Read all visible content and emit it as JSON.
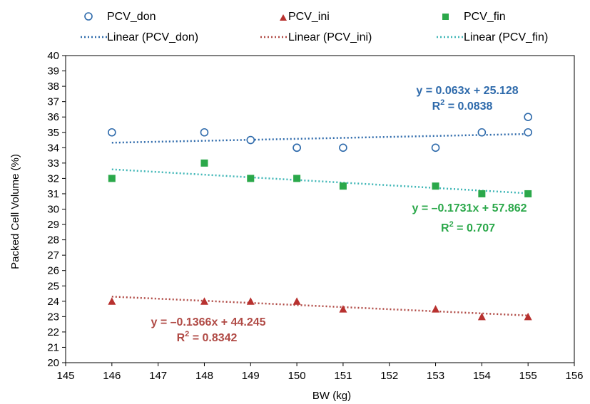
{
  "chart_data": {
    "type": "scatter",
    "title": "",
    "xlabel": "BW (kg)",
    "ylabel": "Packed Cell Volume (%)",
    "xlim": [
      145,
      156
    ],
    "ylim": [
      20,
      40
    ],
    "x_ticks": [
      "145",
      "146",
      "147",
      "148",
      "149",
      "150",
      "151",
      "152",
      "153",
      "154",
      "155",
      "156"
    ],
    "y_ticks": [
      "20",
      "21",
      "22",
      "23",
      "24",
      "25",
      "26",
      "27",
      "28",
      "29",
      "30",
      "31",
      "32",
      "33",
      "34",
      "35",
      "36",
      "37",
      "38",
      "39",
      "40"
    ],
    "grid": false,
    "legend_position": "top",
    "series": [
      {
        "name": "PCV_don",
        "marker": "open-circle",
        "color": "#2e6aab",
        "points": [
          [
            146,
            35
          ],
          [
            148,
            35
          ],
          [
            149,
            34.5
          ],
          [
            150,
            34
          ],
          [
            150,
            34
          ],
          [
            151,
            34
          ],
          [
            153,
            34
          ],
          [
            154,
            35
          ],
          [
            155,
            35
          ],
          [
            155,
            36
          ]
        ],
        "trendline": {
          "legend": "Linear (PCV_don)",
          "slope": 0.063,
          "intercept": 25.128,
          "equation": "y = 0.063x + 25.128",
          "r2_label": "R",
          "r2_value": "= 0.0838",
          "color": "#2e6aab"
        }
      },
      {
        "name": "PCV_ini",
        "marker": "triangle",
        "color": "#b8312f",
        "points": [
          [
            146,
            24
          ],
          [
            148,
            24
          ],
          [
            149,
            24
          ],
          [
            150,
            24
          ],
          [
            151,
            23.5
          ],
          [
            153,
            23.5
          ],
          [
            154,
            23
          ],
          [
            155,
            23
          ]
        ],
        "trendline": {
          "legend": "Linear (PCV_ini)",
          "slope": -0.1366,
          "intercept": 44.245,
          "equation": "y = –0.1366x + 44.245",
          "r2_label": "R",
          "r2_value": "= 0.8342",
          "color": "#b04a45"
        }
      },
      {
        "name": "PCV_fin",
        "marker": "square",
        "color": "#2ba84a",
        "points": [
          [
            146,
            32
          ],
          [
            148,
            33
          ],
          [
            149,
            32
          ],
          [
            150,
            32
          ],
          [
            151,
            31.5
          ],
          [
            153,
            31.5
          ],
          [
            154,
            31
          ],
          [
            155,
            31
          ]
        ],
        "trendline": {
          "legend": "Linear (PCV_fin)",
          "slope": -0.1731,
          "intercept": 57.862,
          "equation": "y = –0.1731x + 57.862",
          "r2_label": "R",
          "r2_value": "= 0.707",
          "color": "#3fb6b6",
          "label_color": "#2ba84a"
        }
      }
    ]
  }
}
